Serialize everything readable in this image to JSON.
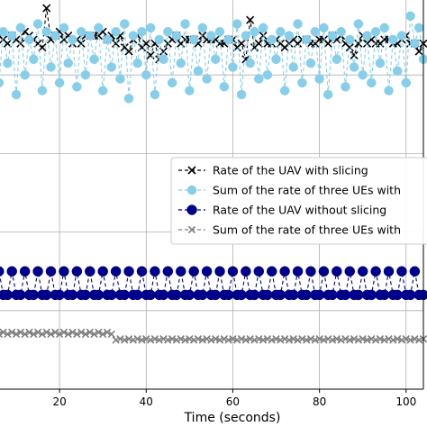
{
  "chart_data": {
    "type": "line",
    "xlabel": "Time (seconds)",
    "x_ticks": [
      20,
      40,
      60,
      80,
      100
    ],
    "xlim": [
      5,
      104
    ],
    "ylim": [
      0,
      100
    ],
    "grid": true,
    "legend_position": "center-right",
    "series": [
      {
        "name": "Rate of the UAV with slicing",
        "color": "#000000",
        "marker": "x",
        "line": "dashed",
        "x": [
          5,
          6,
          7,
          8,
          9,
          10,
          11,
          12,
          13,
          14,
          15,
          16,
          17,
          18,
          19,
          20,
          21,
          22,
          23,
          24,
          25,
          26,
          27,
          28,
          29,
          30,
          31,
          32,
          33,
          34,
          35,
          36,
          37,
          38,
          39,
          40,
          41,
          42,
          43,
          44,
          45,
          46,
          47,
          48,
          49,
          50,
          51,
          52,
          53,
          54,
          55,
          56,
          57,
          58,
          59,
          60,
          61,
          62,
          63,
          64,
          65,
          66,
          67,
          68,
          69,
          70,
          71,
          72,
          73,
          74,
          75,
          76,
          77,
          78,
          79,
          80,
          81,
          82,
          83,
          84,
          85,
          86,
          87,
          88,
          89,
          90,
          91,
          92,
          93,
          94,
          95,
          96,
          97,
          98,
          99,
          100,
          101,
          102,
          103,
          104
        ],
        "values": [
          88,
          90,
          89,
          88,
          90,
          89,
          88,
          91,
          90,
          89,
          88,
          87,
          97,
          89,
          90,
          91,
          89,
          90,
          88,
          89,
          88,
          90,
          90,
          90,
          90,
          91,
          89,
          90,
          88,
          90,
          87,
          86,
          89,
          90,
          87,
          88,
          85,
          88,
          84,
          86,
          88,
          89,
          90,
          88,
          89,
          89,
          89,
          88,
          90,
          89,
          89,
          89,
          88,
          88,
          89,
          89,
          87,
          88,
          84,
          94,
          87,
          88,
          90,
          88,
          88,
          89,
          88,
          87,
          88,
          89,
          88,
          89,
          89,
          88,
          88,
          89,
          89,
          88,
          90,
          89,
          90,
          88,
          87,
          85,
          88,
          90,
          88,
          89,
          88,
          88,
          89,
          89,
          88,
          88,
          89,
          90,
          88,
          88,
          86,
          88
        ]
      },
      {
        "name": "Sum of the rate of three UEs with slicing",
        "color": "#87ceeb",
        "marker": "o",
        "line": "dashed",
        "x": [
          5,
          6,
          7,
          8,
          9,
          10,
          11,
          12,
          13,
          14,
          15,
          16,
          17,
          18,
          19,
          20,
          21,
          22,
          23,
          24,
          25,
          26,
          27,
          28,
          29,
          30,
          31,
          32,
          33,
          34,
          35,
          36,
          37,
          38,
          39,
          40,
          41,
          42,
          43,
          44,
          45,
          46,
          47,
          48,
          49,
          50,
          51,
          52,
          53,
          54,
          55,
          56,
          57,
          58,
          59,
          60,
          61,
          62,
          63,
          64,
          65,
          66,
          67,
          68,
          69,
          70,
          71,
          72,
          73,
          74,
          75,
          76,
          77,
          78,
          79,
          80,
          81,
          82,
          83,
          84,
          85,
          86,
          87,
          88,
          89,
          90,
          91,
          92,
          93,
          94,
          95,
          96,
          97,
          98,
          99,
          100,
          101,
          102,
          103,
          104
        ],
        "values": [
          93,
          78,
          91,
          83,
          90,
          75,
          92,
          80,
          89,
          84,
          93,
          76,
          91,
          82,
          90,
          78,
          92,
          83,
          89,
          77,
          91,
          80,
          90,
          84,
          92,
          76,
          89,
          82,
          91,
          79,
          93,
          74,
          90,
          83,
          91,
          80,
          92,
          75,
          89,
          84,
          91,
          78,
          90,
          83,
          93,
          76,
          89,
          81,
          92,
          79,
          90,
          84,
          91,
          77,
          89,
          82,
          93,
          75,
          90,
          83,
          91,
          79,
          92,
          80,
          89,
          84,
          91,
          76,
          90,
          82,
          93,
          78,
          89,
          83,
          91,
          79,
          92,
          75,
          90,
          84,
          91,
          77,
          89,
          82,
          93,
          80,
          90,
          78,
          91,
          83,
          92,
          76,
          89,
          81,
          90,
          78,
          95,
          88,
          92,
          84
        ]
      },
      {
        "name": "Rate of the UAV without slicing",
        "color": "#00008b",
        "marker": "o",
        "line": "dashed",
        "x": [
          5,
          6,
          7,
          8,
          9,
          10,
          11,
          12,
          13,
          14,
          15,
          16,
          17,
          18,
          19,
          20,
          21,
          22,
          23,
          24,
          25,
          26,
          27,
          28,
          29,
          30,
          31,
          32,
          33,
          34,
          35,
          36,
          37,
          38,
          39,
          40,
          41,
          42,
          43,
          44,
          45,
          46,
          47,
          48,
          49,
          50,
          51,
          52,
          53,
          54,
          55,
          56,
          57,
          58,
          59,
          60,
          61,
          62,
          63,
          64,
          65,
          66,
          67,
          68,
          69,
          70,
          71,
          72,
          73,
          74,
          75,
          76,
          77,
          78,
          79,
          80,
          81,
          82,
          83,
          84,
          85,
          86,
          87,
          88,
          89,
          90,
          91,
          92,
          93,
          94,
          95,
          96,
          97,
          98,
          99,
          100,
          101,
          102,
          103,
          104
        ],
        "values": [
          24,
          30,
          24,
          24,
          30,
          24,
          24,
          30,
          24,
          24,
          30,
          24,
          24,
          30,
          24,
          24,
          30,
          24,
          24,
          30,
          24,
          24,
          30,
          24,
          24,
          30,
          24,
          24,
          30,
          24,
          24,
          30,
          24,
          24,
          30,
          24,
          24,
          30,
          24,
          24,
          30,
          24,
          24,
          30,
          24,
          24,
          30,
          24,
          24,
          30,
          24,
          24,
          30,
          24,
          24,
          30,
          24,
          24,
          30,
          24,
          24,
          30,
          24,
          24,
          30,
          24,
          24,
          30,
          24,
          24,
          30,
          24,
          24,
          30,
          24,
          24,
          30,
          24,
          24,
          30,
          24,
          24,
          30,
          24,
          24,
          30,
          24,
          24,
          30,
          24,
          24,
          30,
          24,
          24,
          30,
          24,
          24,
          30,
          24,
          24
        ]
      },
      {
        "name": "Sum of the rate of three UEs without slicing",
        "color": "#808080",
        "marker": "x",
        "line": "dashed",
        "x": [
          5,
          6,
          7,
          8,
          9,
          10,
          11,
          12,
          13,
          14,
          15,
          16,
          17,
          18,
          19,
          20,
          21,
          22,
          23,
          24,
          25,
          26,
          27,
          28,
          29,
          30,
          31,
          32,
          33,
          34,
          35,
          36,
          37,
          38,
          39,
          40,
          41,
          42,
          43,
          44,
          45,
          46,
          47,
          48,
          49,
          50,
          51,
          52,
          53,
          54,
          55,
          56,
          57,
          58,
          59,
          60,
          61,
          62,
          63,
          64,
          65,
          66,
          67,
          68,
          69,
          70,
          71,
          72,
          73,
          74,
          75,
          76,
          77,
          78,
          79,
          80,
          81,
          82,
          83,
          84,
          85,
          86,
          87,
          88,
          89,
          90,
          91,
          92,
          93,
          94,
          95,
          96,
          97,
          98,
          99,
          100,
          101,
          102,
          103,
          104
        ],
        "values": [
          14.5,
          14,
          14.5,
          14,
          14.5,
          14,
          14.5,
          14,
          14.5,
          14,
          14.5,
          14,
          14.5,
          14,
          14.5,
          14,
          14.5,
          14,
          14.5,
          14,
          14.5,
          14,
          14.5,
          14,
          14.5,
          14,
          14.5,
          14,
          12.5,
          12.8,
          12.5,
          12.8,
          12.5,
          12.8,
          12.5,
          12.8,
          12.5,
          12.8,
          12.5,
          12.8,
          12.5,
          12.8,
          12.5,
          12.8,
          12.5,
          12.8,
          12.5,
          12.8,
          12.5,
          12.8,
          12.5,
          12.8,
          12.5,
          12.8,
          12.5,
          12.8,
          12.5,
          12.8,
          12.5,
          12.8,
          12.5,
          12.8,
          12.5,
          12.8,
          12.5,
          12.8,
          12.5,
          12.8,
          12.5,
          12.8,
          12.5,
          12.8,
          12.5,
          12.8,
          12.5,
          12.8,
          12.5,
          12.8,
          12.5,
          12.8,
          12.5,
          12.8,
          12.5,
          12.8,
          12.5,
          12.8,
          12.5,
          12.8,
          12.5,
          12.8,
          12.5,
          12.8,
          12.5,
          12.8,
          12.5,
          12.8,
          12.5,
          12.8,
          12.5,
          12.8
        ]
      }
    ],
    "legend_entries": [
      "Rate of the UAV with slicing",
      "Sum of the rate of three UEs with",
      "Rate of the UAV without slicing",
      "Sum of the rate of three UEs with"
    ]
  }
}
